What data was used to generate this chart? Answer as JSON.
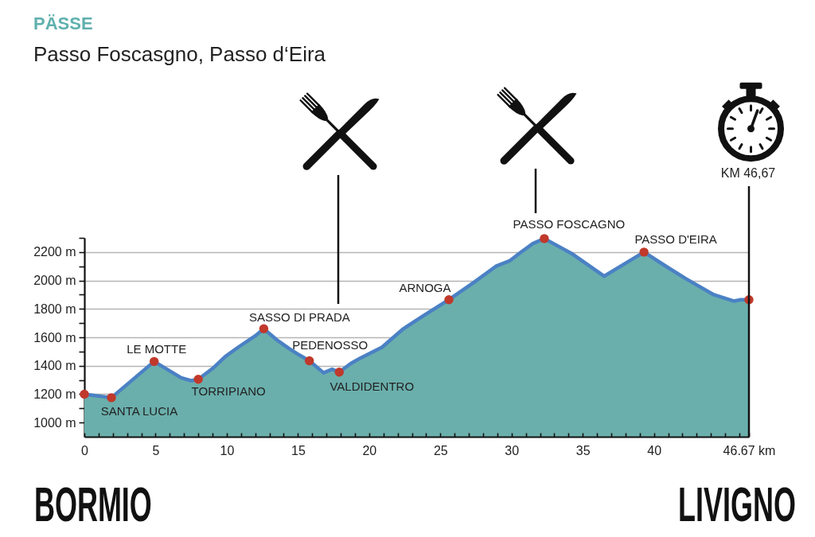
{
  "chart_data": {
    "type": "area",
    "title": "PÄSSE",
    "subtitle": "Passo Foscasgno, Passo d‘Eira",
    "xlim": [
      0,
      46.67
    ],
    "ylim": [
      900,
      2300
    ],
    "xticks": [
      0,
      {
        "value": 1,
        "label": null
      },
      {
        "value": 2,
        "label": null
      },
      {
        "value": 3,
        "label": null
      },
      {
        "value": 4,
        "label": null
      },
      5,
      {
        "value": 6,
        "label": null
      },
      {
        "value": 7,
        "label": null
      },
      {
        "value": 8,
        "label": null
      },
      {
        "value": 9,
        "label": null
      },
      10,
      {
        "value": 11,
        "label": null
      },
      {
        "value": 12,
        "label": null
      },
      {
        "value": 13,
        "label": null
      },
      {
        "value": 14,
        "label": null
      },
      15,
      {
        "value": 16,
        "label": null
      },
      {
        "value": 17,
        "label": null
      },
      {
        "value": 18,
        "label": null
      },
      {
        "value": 19,
        "label": null
      },
      20,
      {
        "value": 21,
        "label": null
      },
      {
        "value": 22,
        "label": null
      },
      {
        "value": 23,
        "label": null
      },
      {
        "value": 24,
        "label": null
      },
      25,
      {
        "value": 26,
        "label": null
      },
      {
        "value": 27,
        "label": null
      },
      {
        "value": 28,
        "label": null
      },
      {
        "value": 29,
        "label": null
      },
      30,
      {
        "value": 31,
        "label": null
      },
      {
        "value": 32,
        "label": null
      },
      {
        "value": 33,
        "label": null
      },
      {
        "value": 34,
        "label": null
      },
      35,
      {
        "value": 36,
        "label": null
      },
      {
        "value": 37,
        "label": null
      },
      {
        "value": 38,
        "label": null
      },
      {
        "value": 39,
        "label": null
      },
      40,
      {
        "value": 41,
        "label": null
      },
      {
        "value": 42,
        "label": null
      },
      {
        "value": 43,
        "label": null
      },
      {
        "value": 44,
        "label": null
      },
      {
        "value": 45,
        "label": null
      },
      {
        "value": 46,
        "label": null
      },
      {
        "value": 46.67,
        "label": "46.67 km"
      }
    ],
    "yticks": [
      {
        "value": 1000,
        "label": "1000 m"
      },
      {
        "value": 1100,
        "label": null
      },
      {
        "value": 1200,
        "label": "1200 m"
      },
      {
        "value": 1300,
        "label": null
      },
      {
        "value": 1400,
        "label": "1400 m"
      },
      {
        "value": 1500,
        "label": null
      },
      {
        "value": 1600,
        "label": "1600 m"
      },
      {
        "value": 1700,
        "label": null
      },
      {
        "value": 1800,
        "label": "1800 m"
      },
      {
        "value": 1900,
        "label": null
      },
      {
        "value": 2000,
        "label": "2000 m"
      },
      {
        "value": 2100,
        "label": null
      },
      {
        "value": 2200,
        "label": "2200 m"
      },
      {
        "value": 2300,
        "label": null
      }
    ],
    "grid": "y",
    "series": [
      {
        "color": "#6aafac",
        "x": [
          0,
          1.9,
          4.9,
          6.8,
          7.5,
          8.0,
          9.0,
          9.9,
          10.8,
          12.0,
          12.6,
          13.6,
          14.4,
          15.1,
          15.8,
          16.8,
          17.4,
          17.9,
          18.7,
          19.4,
          20.9,
          22.4,
          23.7,
          25.6,
          27.4,
          28.9,
          29.9,
          30.6,
          31.5,
          32.3,
          34.3,
          36.5,
          39.3,
          41.0,
          42.2,
          44.2,
          45.6,
          46.1,
          46.67
        ],
        "values": [
          1200,
          1175,
          1430,
          1315,
          1295,
          1305,
          1380,
          1465,
          1530,
          1610,
          1660,
          1575,
          1520,
          1475,
          1435,
          1350,
          1375,
          1355,
          1415,
          1455,
          1530,
          1660,
          1745,
          1865,
          1990,
          2100,
          2140,
          2195,
          2260,
          2295,
          2185,
          2030,
          2200,
          2090,
          2015,
          1900,
          1855,
          1865,
          1865
        ]
      },
      {
        "type": "scatter",
        "color": "#c0392b",
        "marker": "circle",
        "x": [
          0,
          1.9,
          4.9,
          8.0,
          12.6,
          15.8,
          17.9,
          25.6,
          32.3,
          39.3,
          46.67
        ],
        "values": [
          1200,
          1175,
          1430,
          1305,
          1660,
          1435,
          1355,
          1865,
          2295,
          2200,
          1865
        ]
      }
    ],
    "ref_lines": [
      {
        "axis": "x",
        "value": 46.67,
        "color": "#111111"
      }
    ],
    "annotations": [
      {
        "text": "SANTA LUCIA",
        "x": 1.9,
        "y": 1175
      },
      {
        "text": "LE MOTTE",
        "x": 4.9,
        "y": 1430
      },
      {
        "text": "TORRIPIANO",
        "x": 8.0,
        "y": 1305
      },
      {
        "text": "SASSO DI PRADA",
        "x": 12.6,
        "y": 1660
      },
      {
        "text": "PEDENOSSO",
        "x": 15.8,
        "y": 1435
      },
      {
        "text": "VALDIDENTRO",
        "x": 17.9,
        "y": 1355
      },
      {
        "text": "ARNOGA",
        "x": 25.6,
        "y": 1865
      },
      {
        "text": "PASSO FOSCAGNO",
        "x": 32.3,
        "y": 2295
      },
      {
        "text": "PASSO D'EIRA",
        "x": 39.3,
        "y": 2200
      },
      "KM 46,67",
      "BORMIO",
      "LIVIGNO"
    ]
  }
}
